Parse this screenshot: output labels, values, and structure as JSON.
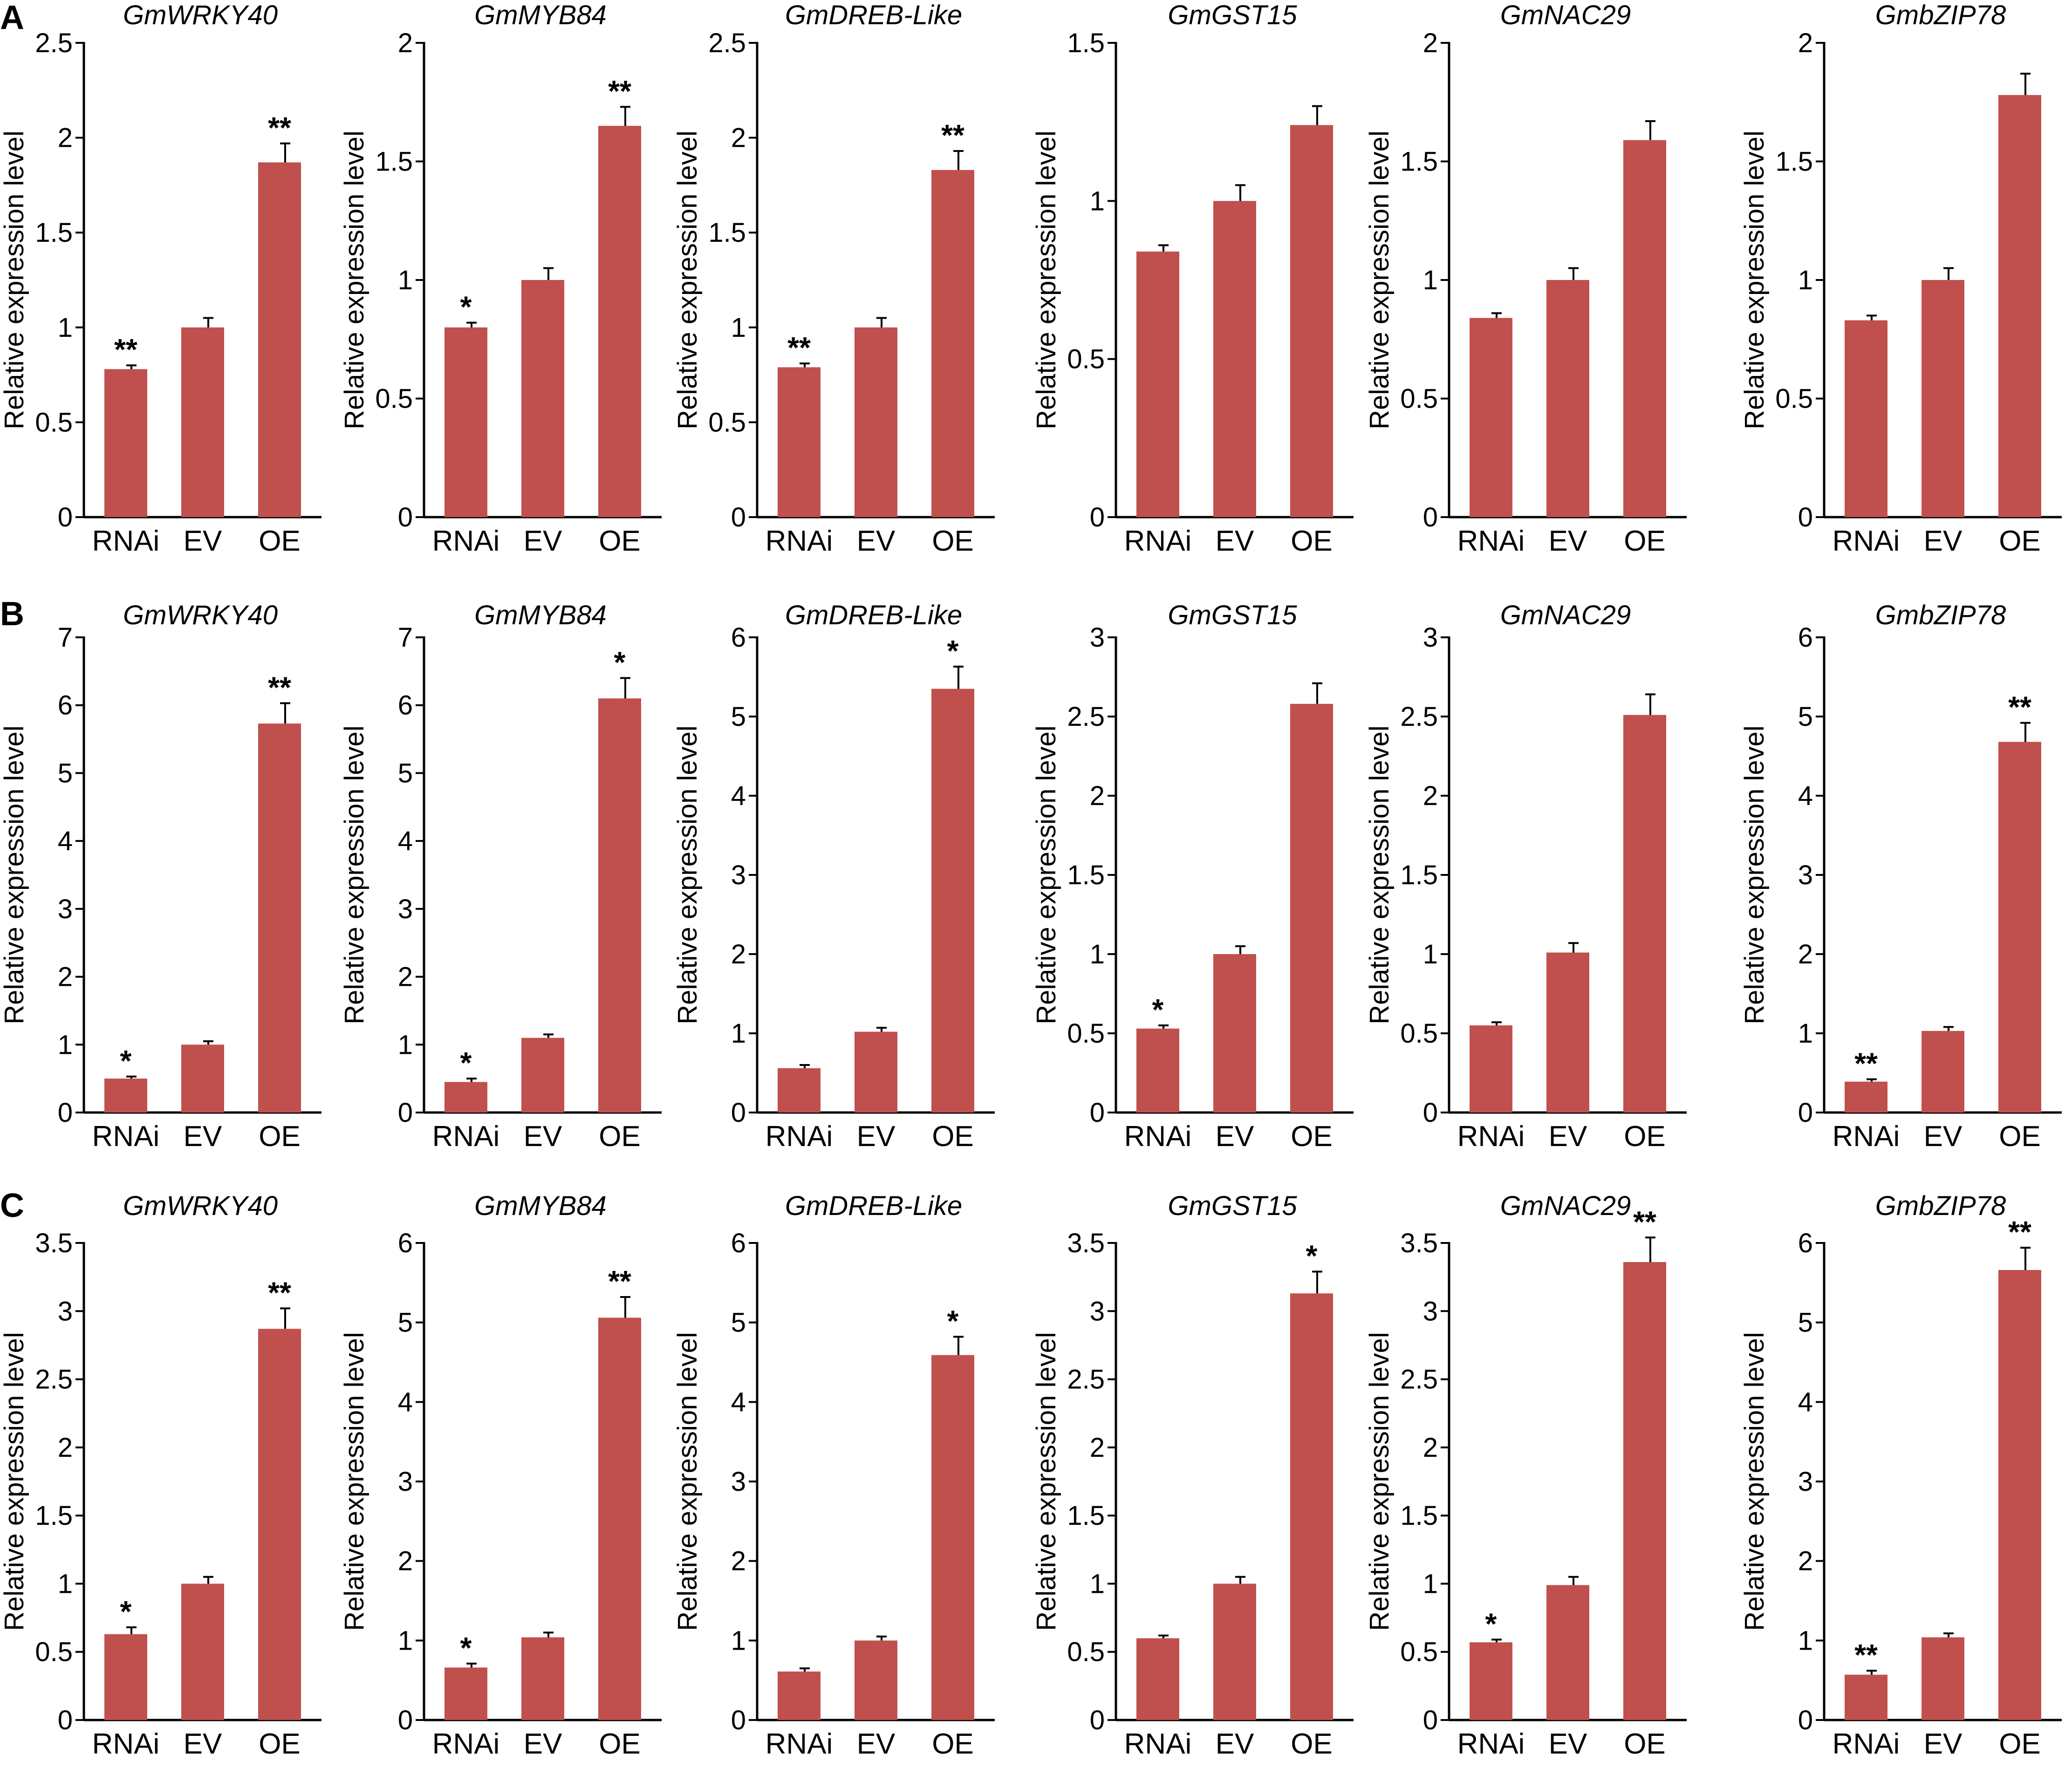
{
  "figure": {
    "bar_color": "#c0504d",
    "axis_color": "#000000",
    "panels": [
      "A",
      "B",
      "C"
    ]
  },
  "chart_data": [
    {
      "panel": "A",
      "type": "bar",
      "title": "GmWRKY40",
      "ylabel": "Relative expression level",
      "categories": [
        "RNAi",
        "EV",
        "OE"
      ],
      "values": [
        0.78,
        1.0,
        1.87
      ],
      "errors": [
        0.02,
        0.05,
        0.1
      ],
      "significance": [
        "**",
        "",
        "**"
      ],
      "ylim": [
        0,
        2.5
      ],
      "ticks": [
        "0",
        "0.5",
        "1",
        "1.5",
        "2",
        "2.5"
      ]
    },
    {
      "panel": "A",
      "type": "bar",
      "title": "GmMYB84",
      "ylabel": "Relative expression level",
      "categories": [
        "RNAi",
        "EV",
        "OE"
      ],
      "values": [
        0.8,
        1.0,
        1.65
      ],
      "errors": [
        0.02,
        0.05,
        0.08
      ],
      "significance": [
        "*",
        "",
        "**"
      ],
      "ylim": [
        0,
        2
      ],
      "ticks": [
        "0",
        "0.5",
        "1",
        "1.5",
        "2"
      ]
    },
    {
      "panel": "A",
      "type": "bar",
      "title": "GmDREB-Like",
      "ylabel": "Relative expression level",
      "categories": [
        "RNAi",
        "EV",
        "OE"
      ],
      "values": [
        0.79,
        1.0,
        1.83
      ],
      "errors": [
        0.02,
        0.05,
        0.1
      ],
      "significance": [
        "**",
        "",
        "**"
      ],
      "ylim": [
        0,
        2.5
      ],
      "ticks": [
        "0",
        "0.5",
        "1",
        "1.5",
        "2",
        "2.5"
      ]
    },
    {
      "panel": "A",
      "type": "bar",
      "title": "GmGST15",
      "ylabel": "Relative expression level",
      "categories": [
        "RNAi",
        "EV",
        "OE"
      ],
      "values": [
        0.84,
        1.0,
        1.24
      ],
      "errors": [
        0.02,
        0.05,
        0.06
      ],
      "significance": [
        "",
        "",
        ""
      ],
      "ylim": [
        0,
        1.5
      ],
      "ticks": [
        "0",
        "0.5",
        "1",
        "1.5"
      ]
    },
    {
      "panel": "A",
      "type": "bar",
      "title": "GmNAC29",
      "ylabel": "Relative expression level",
      "categories": [
        "RNAi",
        "EV",
        "OE"
      ],
      "values": [
        0.84,
        1.0,
        1.59
      ],
      "errors": [
        0.02,
        0.05,
        0.08
      ],
      "significance": [
        "",
        "",
        ""
      ],
      "ylim": [
        0,
        2
      ],
      "ticks": [
        "0",
        "0.5",
        "1",
        "1.5",
        "2"
      ]
    },
    {
      "panel": "A",
      "type": "bar",
      "title": "GmbZIP78",
      "ylabel": "Relative expression level",
      "categories": [
        "RNAi",
        "EV",
        "OE"
      ],
      "values": [
        0.83,
        1.0,
        1.78
      ],
      "errors": [
        0.02,
        0.05,
        0.09
      ],
      "significance": [
        "",
        "",
        ""
      ],
      "ylim": [
        0,
        2
      ],
      "ticks": [
        "0",
        "0.5",
        "1",
        "1.5",
        "2"
      ]
    },
    {
      "panel": "B",
      "type": "bar",
      "title": "GmWRKY40",
      "ylabel": "Relative expression level",
      "categories": [
        "RNAi",
        "EV",
        "OE"
      ],
      "values": [
        0.5,
        1.0,
        5.73
      ],
      "errors": [
        0.03,
        0.05,
        0.3
      ],
      "significance": [
        "*",
        "",
        "**"
      ],
      "ylim": [
        0,
        7
      ],
      "ticks": [
        "0",
        "1",
        "2",
        "3",
        "4",
        "5",
        "6",
        "7"
      ]
    },
    {
      "panel": "B",
      "type": "bar",
      "title": "GmMYB84",
      "ylabel": "Relative expression level",
      "categories": [
        "RNAi",
        "EV",
        "OE"
      ],
      "values": [
        0.45,
        1.1,
        6.1
      ],
      "errors": [
        0.05,
        0.05,
        0.3
      ],
      "significance": [
        "*",
        "",
        "*"
      ],
      "ylim": [
        0,
        7
      ],
      "ticks": [
        "0",
        "1",
        "2",
        "3",
        "4",
        "5",
        "6",
        "7"
      ]
    },
    {
      "panel": "B",
      "type": "bar",
      "title": "GmDREB-Like",
      "ylabel": "Relative expression level",
      "categories": [
        "RNAi",
        "EV",
        "OE"
      ],
      "values": [
        0.56,
        1.02,
        5.35
      ],
      "errors": [
        0.04,
        0.05,
        0.28
      ],
      "significance": [
        "",
        "",
        "*"
      ],
      "ylim": [
        0,
        6
      ],
      "ticks": [
        "0",
        "1",
        "2",
        "3",
        "4",
        "5",
        "6"
      ]
    },
    {
      "panel": "B",
      "type": "bar",
      "title": "GmGST15",
      "ylabel": "Relative expression level",
      "categories": [
        "RNAi",
        "EV",
        "OE"
      ],
      "values": [
        0.53,
        1.0,
        2.58
      ],
      "errors": [
        0.02,
        0.05,
        0.13
      ],
      "significance": [
        "*",
        "",
        ""
      ],
      "ylim": [
        0,
        3
      ],
      "ticks": [
        "0",
        "0.5",
        "1",
        "1.5",
        "2",
        "2.5",
        "3"
      ]
    },
    {
      "panel": "B",
      "type": "bar",
      "title": "GmNAC29",
      "ylabel": "Relative expression level",
      "categories": [
        "RNAi",
        "EV",
        "OE"
      ],
      "values": [
        0.55,
        1.01,
        2.51
      ],
      "errors": [
        0.02,
        0.06,
        0.13
      ],
      "significance": [
        "",
        "",
        ""
      ],
      "ylim": [
        0,
        3
      ],
      "ticks": [
        "0",
        "0.5",
        "1",
        "1.5",
        "2",
        "2.5",
        "3"
      ]
    },
    {
      "panel": "B",
      "type": "bar",
      "title": "GmbZIP78",
      "ylabel": "Relative expression level",
      "categories": [
        "RNAi",
        "EV",
        "OE"
      ],
      "values": [
        0.39,
        1.03,
        4.68
      ],
      "errors": [
        0.03,
        0.05,
        0.24
      ],
      "significance": [
        "**",
        "",
        "**"
      ],
      "ylim": [
        0,
        6
      ],
      "ticks": [
        "0",
        "1",
        "2",
        "3",
        "4",
        "5",
        "6"
      ]
    },
    {
      "panel": "C",
      "type": "bar",
      "title": "GmWRKY40",
      "ylabel": "Relative expression level",
      "categories": [
        "RNAi",
        "EV",
        "OE"
      ],
      "values": [
        0.63,
        1.0,
        2.87
      ],
      "errors": [
        0.05,
        0.05,
        0.15
      ],
      "significance": [
        "*",
        "",
        "**"
      ],
      "ylim": [
        0,
        3.5
      ],
      "ticks": [
        "0",
        "0.5",
        "1",
        "1.5",
        "2",
        "2.5",
        "3",
        "3.5"
      ]
    },
    {
      "panel": "C",
      "type": "bar",
      "title": "GmMYB84",
      "ylabel": "Relative expression level",
      "categories": [
        "RNAi",
        "EV",
        "OE"
      ],
      "values": [
        0.66,
        1.04,
        5.06
      ],
      "errors": [
        0.05,
        0.06,
        0.26
      ],
      "significance": [
        "*",
        "",
        "**"
      ],
      "ylim": [
        0,
        6
      ],
      "ticks": [
        "0",
        "1",
        "2",
        "3",
        "4",
        "5",
        "6"
      ]
    },
    {
      "panel": "C",
      "type": "bar",
      "title": "GmDREB-Like",
      "ylabel": "Relative expression level",
      "categories": [
        "RNAi",
        "EV",
        "OE"
      ],
      "values": [
        0.61,
        1.0,
        4.59
      ],
      "errors": [
        0.04,
        0.05,
        0.23
      ],
      "significance": [
        "",
        "",
        "*"
      ],
      "ylim": [
        0,
        6
      ],
      "ticks": [
        "0",
        "1",
        "2",
        "3",
        "4",
        "5",
        "6"
      ]
    },
    {
      "panel": "C",
      "type": "bar",
      "title": "GmGST15",
      "ylabel": "Relative expression level",
      "categories": [
        "RNAi",
        "EV",
        "OE"
      ],
      "values": [
        0.6,
        1.0,
        3.13
      ],
      "errors": [
        0.02,
        0.05,
        0.16
      ],
      "significance": [
        "",
        "",
        "*"
      ],
      "ylim": [
        0,
        3.5
      ],
      "ticks": [
        "0",
        "0.5",
        "1",
        "1.5",
        "2",
        "2.5",
        "3",
        "3.5"
      ]
    },
    {
      "panel": "C",
      "type": "bar",
      "title": "GmNAC29",
      "ylabel": "Relative expression level",
      "categories": [
        "RNAi",
        "EV",
        "OE"
      ],
      "values": [
        0.57,
        0.99,
        3.36
      ],
      "errors": [
        0.02,
        0.06,
        0.18
      ],
      "significance": [
        "*",
        "",
        "**"
      ],
      "ylim": [
        0,
        3.5
      ],
      "ticks": [
        "0",
        "0.5",
        "1",
        "1.5",
        "2",
        "2.5",
        "3",
        "3.5"
      ]
    },
    {
      "panel": "C",
      "type": "bar",
      "title": "GmbZIP78",
      "ylabel": "Relative expression level",
      "categories": [
        "RNAi",
        "EV",
        "OE"
      ],
      "values": [
        0.57,
        1.04,
        5.66
      ],
      "errors": [
        0.05,
        0.05,
        0.28
      ],
      "significance": [
        "**",
        "",
        "**"
      ],
      "ylim": [
        0,
        6
      ],
      "ticks": [
        "0",
        "1",
        "2",
        "3",
        "4",
        "5",
        "6"
      ]
    }
  ]
}
